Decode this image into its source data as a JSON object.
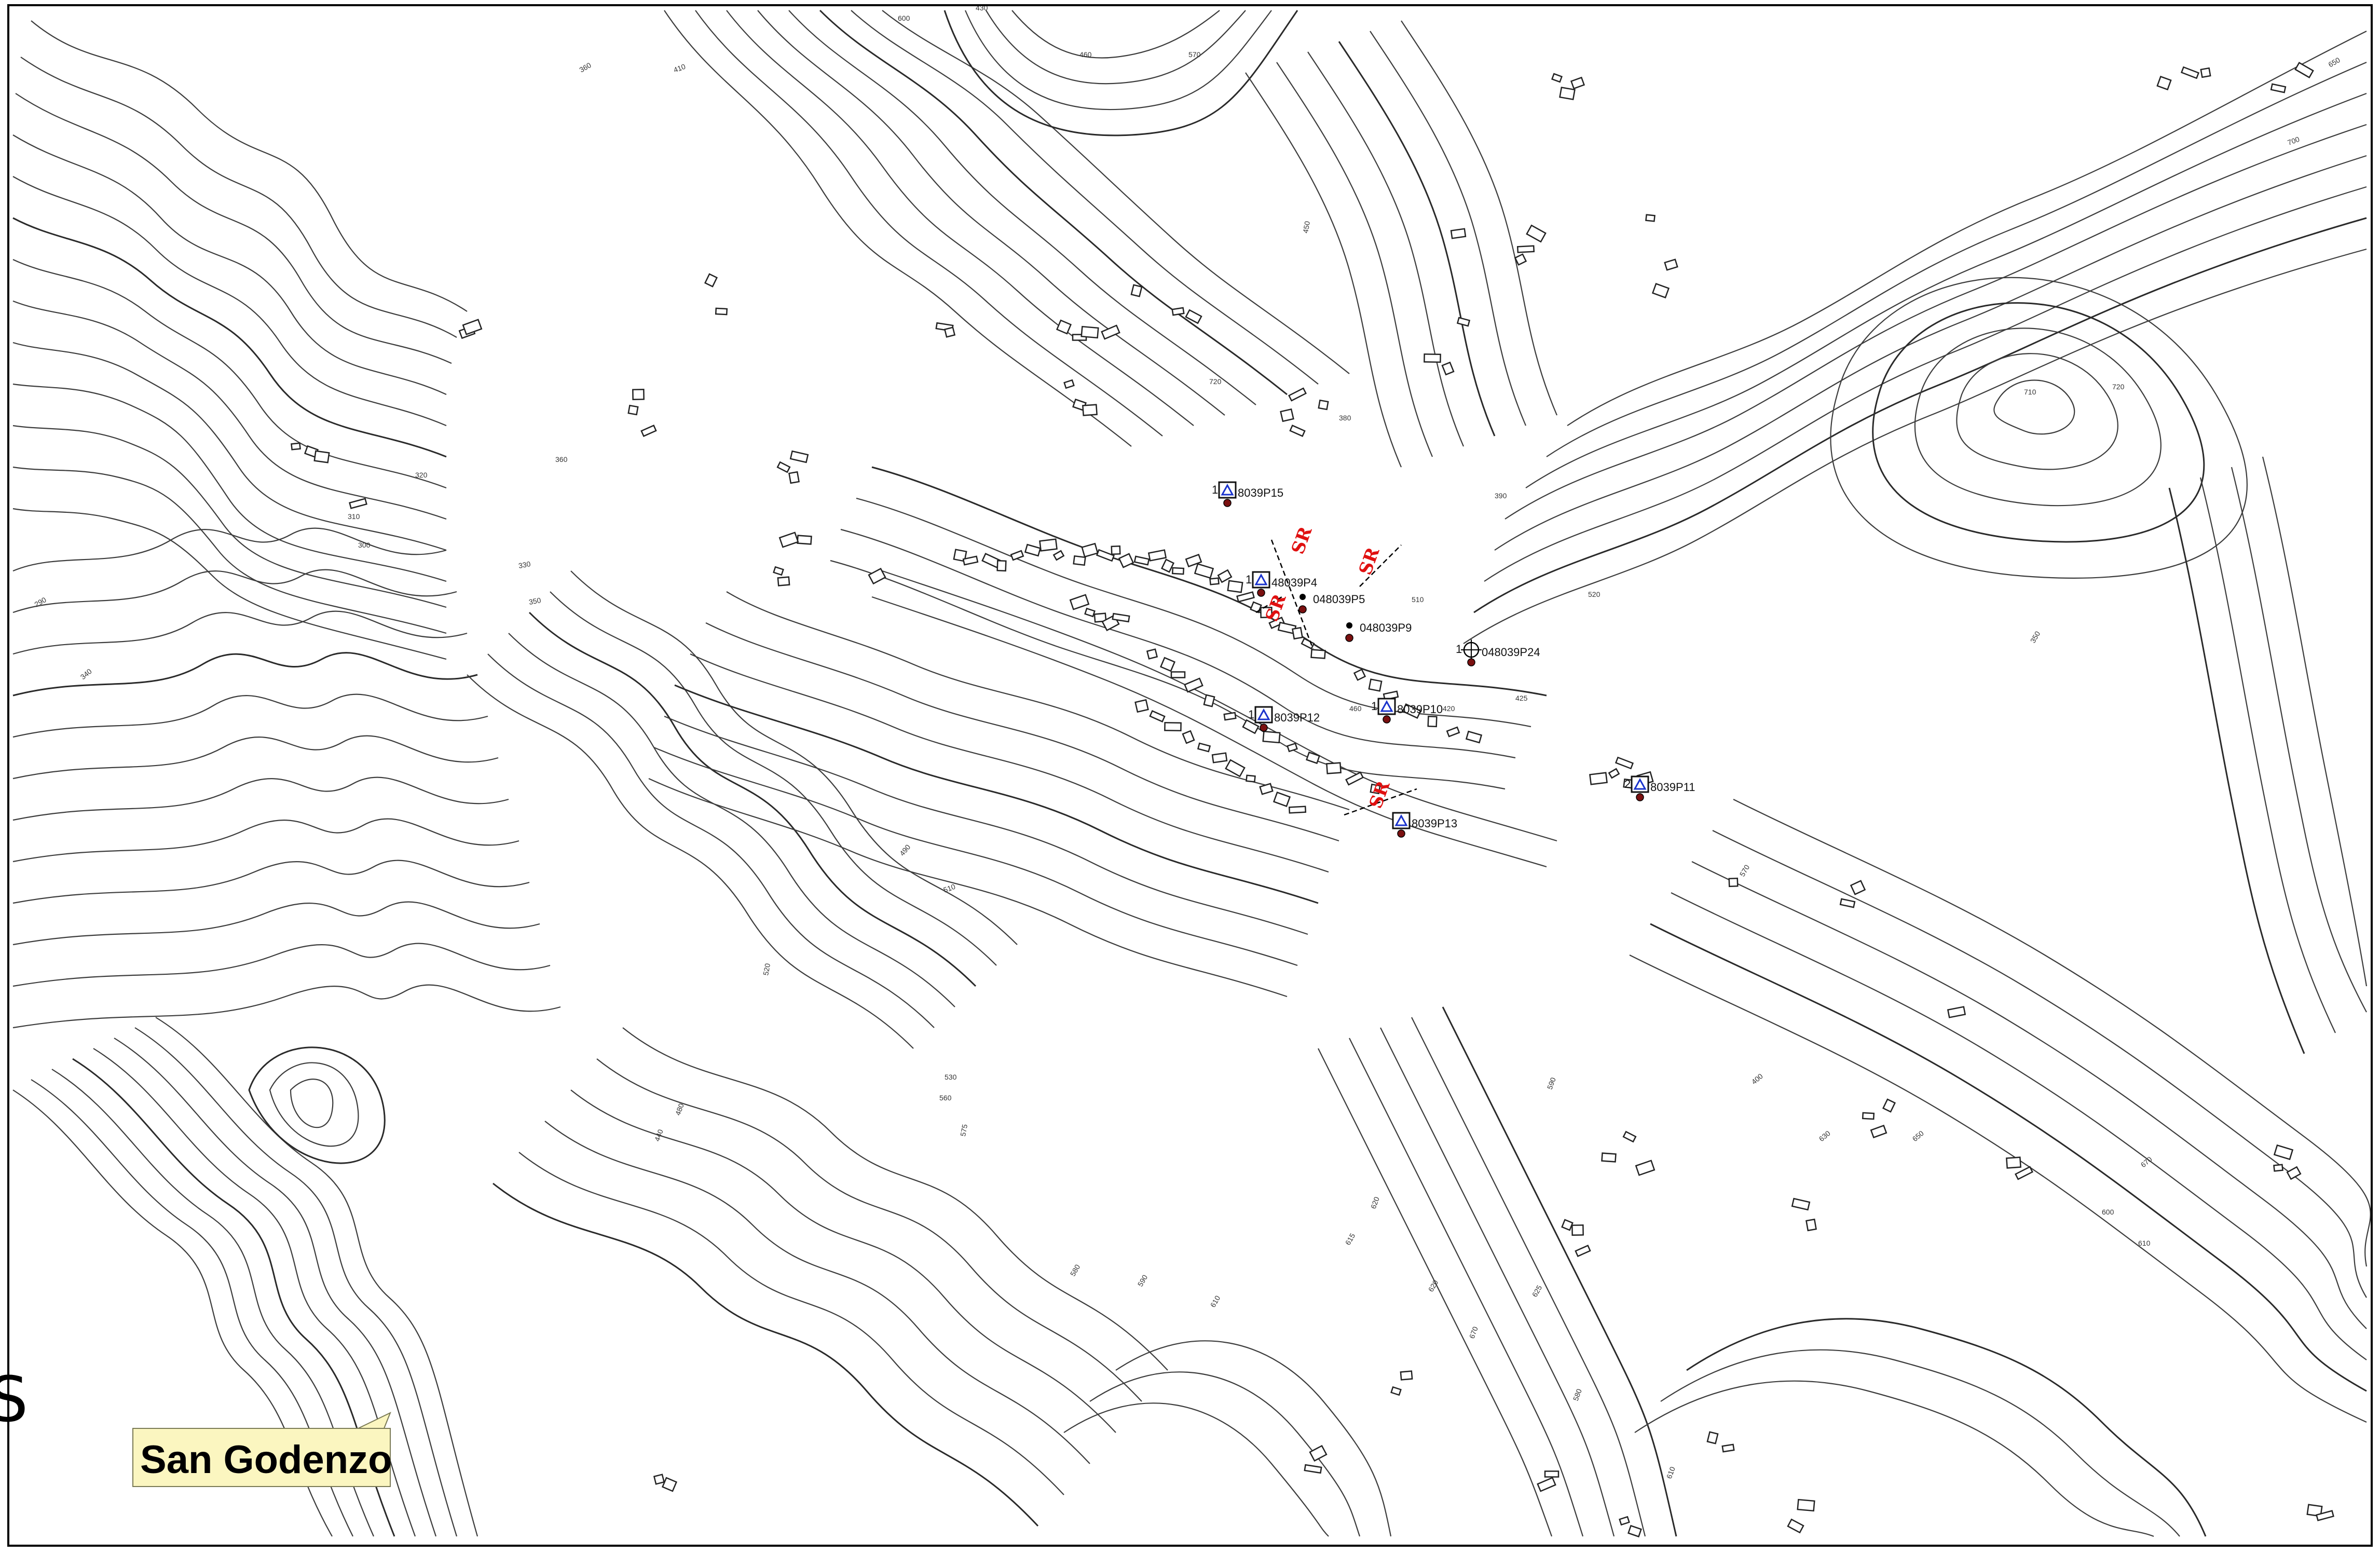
{
  "location_label": "San Godenzo",
  "edge_fragment": "S",
  "colors": {
    "contour": "#3c3c3c",
    "frame": "#000000",
    "label_fill": "#fbf6c0",
    "marker_blue": "#1a33cc",
    "marker_red": "#e01010",
    "point_dot": "#7a1010"
  },
  "measurement_points": [
    {
      "code": "8039P15",
      "prefix": "1",
      "icon": "triangle-station-icon"
    },
    {
      "code": "48039P4",
      "prefix": "1",
      "icon": "triangle-station-icon"
    },
    {
      "code": "048039P5",
      "prefix": "",
      "icon": "point-icon"
    },
    {
      "code": "048039P9",
      "prefix": "",
      "icon": "point-icon"
    },
    {
      "code": "048039P24",
      "prefix": "1",
      "icon": "crosshair-icon"
    },
    {
      "code": "8039P10",
      "prefix": "1",
      "icon": "triangle-station-icon"
    },
    {
      "code": "8039P12",
      "prefix": "1",
      "icon": "triangle-station-icon"
    },
    {
      "code": "8039P11",
      "prefix": "2",
      "icon": "triangle-station-icon"
    },
    {
      "code": "8039P13",
      "prefix": "",
      "icon": "triangle-station-icon"
    }
  ],
  "survey_lines": [
    {
      "label": "SR"
    },
    {
      "label": "SR"
    },
    {
      "label": "SR"
    },
    {
      "label": "SR"
    }
  ],
  "elevation_labels": [
    "360",
    "410",
    "430",
    "460",
    "570",
    "600",
    "650",
    "700",
    "710",
    "720",
    "720",
    "320",
    "310",
    "300",
    "330",
    "350",
    "290",
    "340",
    "360",
    "380",
    "390",
    "440",
    "480",
    "490",
    "510",
    "520",
    "530",
    "560",
    "575",
    "580",
    "590",
    "610",
    "615",
    "620",
    "625",
    "630",
    "650",
    "670",
    "600",
    "610",
    "400",
    "350",
    "590",
    "620",
    "670",
    "580",
    "610",
    "570",
    "450",
    "510",
    "520",
    "460",
    "425",
    "420"
  ]
}
